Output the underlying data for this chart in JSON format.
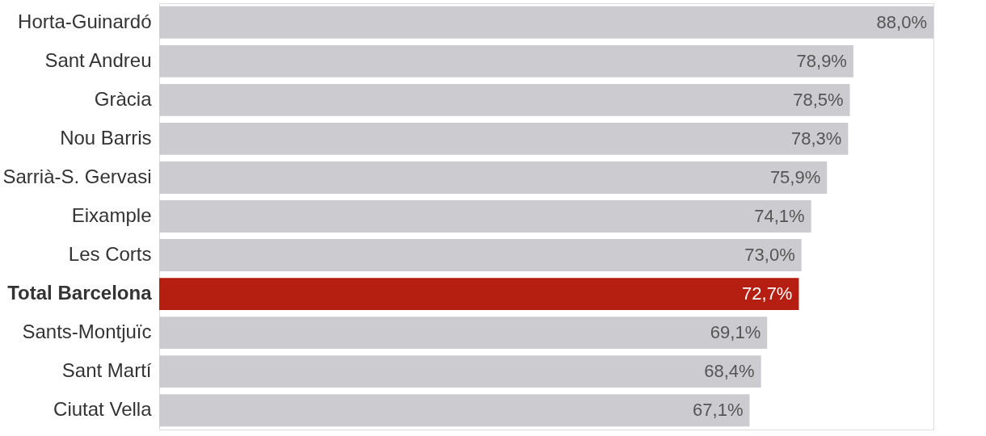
{
  "chart_data": {
    "type": "bar",
    "orientation": "horizontal",
    "categories": [
      "Horta-Guinardó",
      "Sant Andreu",
      "Gràcia",
      "Nou Barris",
      "Sarrià-S. Gervasi",
      "Eixample",
      "Les Corts",
      "Total Barcelona",
      "Sants-Montjuïc",
      "Sant Martí",
      "Ciutat Vella"
    ],
    "values": [
      88.0,
      78.9,
      78.5,
      78.3,
      75.9,
      74.1,
      73.0,
      72.7,
      69.1,
      68.4,
      67.1
    ],
    "colors": [
      "#cccbd0",
      "#cccbd0",
      "#cccbd0",
      "#cccbd0",
      "#cccbd0",
      "#cccbd0",
      "#cccbd0",
      "#b41f12",
      "#cccbd0",
      "#cccbd0",
      "#cccbd0"
    ],
    "value_labels": [
      "88,0%",
      "78,9%",
      "78,5%",
      "78,3%",
      "75,9%",
      "74,1%",
      "73,0%",
      "72,7%",
      "69,1%",
      "68,4%",
      "67,1%"
    ]
  }
}
